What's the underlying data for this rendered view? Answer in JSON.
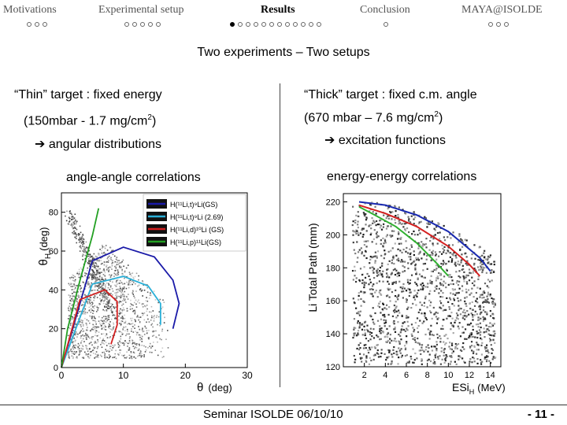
{
  "nav": {
    "sections": [
      {
        "label": "Motivations",
        "dots": 3,
        "filled": 0
      },
      {
        "label": "Experimental setup",
        "dots": 5,
        "filled": 0
      },
      {
        "label": "Results",
        "dots": 12,
        "filled": 1
      },
      {
        "label": "Conclusion",
        "dots": 1,
        "filled": 0
      },
      {
        "label": "MAYA@ISOLDE",
        "dots": 3,
        "filled": 0
      }
    ]
  },
  "slide": {
    "title": "Two experiments – Two setups"
  },
  "left": {
    "heading": "“Thin” target : fixed energy",
    "pressure": "(150mbar - 1.7 mg/cm",
    "pressure_sup": "2",
    "pressure_end": ")",
    "arrow_glyph": "➔",
    "result": "angular distributions",
    "plot_title": "angle-angle correlations"
  },
  "right": {
    "heading": "“Thick” target : fixed c.m. angle",
    "pressure": "(670 mbar – 7.6 mg/cm",
    "pressure_sup": "2",
    "pressure_end": ")",
    "arrow_glyph": "➔",
    "result": "excitation functions",
    "plot_title": "energy-energy correlations"
  },
  "left_plot": {
    "ylabel_sym": "θ",
    "ylabel_sub": "H",
    "ylabel_unit": "(deg)",
    "xlabel_sym": "θ",
    "xlabel_unit": "(deg)",
    "yticks": [
      "0",
      "20",
      "40",
      "60",
      "80"
    ],
    "xticks": [
      "0",
      "10",
      "20",
      "30"
    ],
    "legend": [
      {
        "text": "H(¹¹Li,t)⁹Li(GS)",
        "color": "#1a1aa8"
      },
      {
        "text": "H(¹¹Li,t)⁹Li (2.69)",
        "color": "#2ab0d8"
      },
      {
        "text": "H(¹¹Li,d)¹⁰Li (GS)",
        "color": "#d42020"
      },
      {
        "text": "H(¹¹Li,p)¹¹Li(GS)",
        "color": "#22a022"
      }
    ]
  },
  "right_plot": {
    "ylabel": "Li Total Path (mm)",
    "xlabel_main": "ESi",
    "xlabel_sub": "H",
    "xlabel_unit": "(MeV)",
    "yticks": [
      "120",
      "140",
      "160",
      "180",
      "200",
      "220"
    ],
    "xticks": [
      "2",
      "4",
      "6",
      "8",
      "10",
      "12",
      "14"
    ]
  },
  "chart_data": [
    {
      "type": "scatter",
      "title": "angle-angle correlations",
      "xlabel": "θ (deg)",
      "ylabel": "θH (deg)",
      "xlim": [
        0,
        30
      ],
      "ylim": [
        0,
        90
      ],
      "series": [
        {
          "name": "H(¹¹Li,t)⁹Li(GS)",
          "x": [
            0,
            5,
            10,
            15,
            18,
            19,
            18
          ],
          "y": [
            0,
            55,
            62,
            57,
            45,
            33,
            20
          ]
        },
        {
          "name": "H(¹¹Li,t)⁹Li (2.69)",
          "x": [
            0,
            5,
            10,
            14,
            16,
            16
          ],
          "y": [
            0,
            43,
            47,
            42,
            33,
            22
          ]
        },
        {
          "name": "H(¹¹Li,d)¹⁰Li (GS)",
          "x": [
            0,
            3,
            7,
            9,
            9,
            8
          ],
          "y": [
            0,
            35,
            40,
            34,
            22,
            12
          ]
        },
        {
          "name": "H(¹¹Li,p)¹¹Li(GS)",
          "x": [
            0,
            1,
            3,
            5,
            6
          ],
          "y": [
            0,
            20,
            45,
            68,
            82
          ]
        }
      ]
    },
    {
      "type": "scatter",
      "title": "energy-energy correlations",
      "xlabel": "ESi H (MeV)",
      "ylabel": "Li Total Path (mm)",
      "xlim": [
        0,
        15
      ],
      "ylim": [
        120,
        225
      ],
      "series": [
        {
          "name": "blue",
          "x": [
            1.5,
            4,
            7,
            10,
            13,
            14
          ],
          "y": [
            220,
            218,
            212,
            202,
            186,
            178
          ]
        },
        {
          "name": "red",
          "x": [
            1.5,
            4,
            7,
            10,
            12,
            13
          ],
          "y": [
            218,
            213,
            205,
            193,
            182,
            175
          ]
        },
        {
          "name": "green",
          "x": [
            1.5,
            3,
            5,
            7,
            9,
            10
          ],
          "y": [
            217,
            212,
            205,
            195,
            182,
            175
          ]
        }
      ]
    }
  ],
  "footer": {
    "seminar": "Seminar ISOLDE 06/10/10",
    "page": "- 11 -"
  }
}
